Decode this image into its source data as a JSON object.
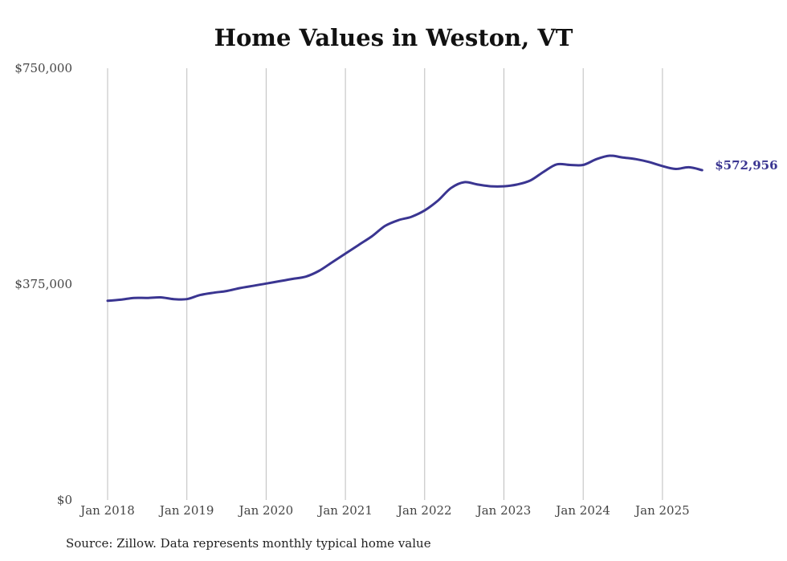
{
  "chart_data": {
    "type": "line",
    "title": "Home Values in Weston, VT",
    "xlabel": "",
    "ylabel": "",
    "ylim": [
      0,
      750000
    ],
    "y_ticks": [
      {
        "value": 0,
        "label": "$0"
      },
      {
        "value": 375000,
        "label": "$375,000"
      },
      {
        "value": 750000,
        "label": "$750,000"
      }
    ],
    "x_ticks": [
      "Jan 2018",
      "Jan 2019",
      "Jan 2020",
      "Jan 2021",
      "Jan 2022",
      "Jan 2023",
      "Jan 2024",
      "Jan 2025"
    ],
    "x_tick_years": [
      2018,
      2019,
      2020,
      2021,
      2022,
      2023,
      2024,
      2025
    ],
    "grid": "vertical",
    "line_color": "#3a3591",
    "end_label": "$572,956",
    "series": [
      {
        "x": [
          "2018-01",
          "2018-03",
          "2018-05",
          "2018-07",
          "2018-09",
          "2018-11",
          "2019-01",
          "2019-03",
          "2019-05",
          "2019-07",
          "2019-09",
          "2019-11",
          "2020-01",
          "2020-03",
          "2020-05",
          "2020-07",
          "2020-09",
          "2020-11",
          "2021-01",
          "2021-03",
          "2021-05",
          "2021-07",
          "2021-09",
          "2021-11",
          "2022-01",
          "2022-03",
          "2022-05",
          "2022-07",
          "2022-09",
          "2022-11",
          "2023-01",
          "2023-03",
          "2023-05",
          "2023-07",
          "2023-09",
          "2023-11",
          "2024-01",
          "2024-03",
          "2024-05",
          "2024-07",
          "2024-09",
          "2024-11",
          "2025-01",
          "2025-03",
          "2025-05",
          "2025-07"
        ],
        "values": [
          346000,
          348000,
          351000,
          351000,
          352000,
          349000,
          349000,
          356000,
          360000,
          363000,
          368000,
          372000,
          376000,
          380000,
          384000,
          388000,
          398000,
          413000,
          428000,
          443000,
          458000,
          476000,
          486000,
          492000,
          503000,
          520000,
          542000,
          552000,
          548000,
          545000,
          545000,
          548000,
          555000,
          570000,
          583000,
          582000,
          582000,
          592000,
          598000,
          595000,
          592000,
          587000,
          580000,
          575000,
          578000,
          572956
        ]
      }
    ]
  },
  "source": "Source: Zillow. Data represents monthly typical home value"
}
